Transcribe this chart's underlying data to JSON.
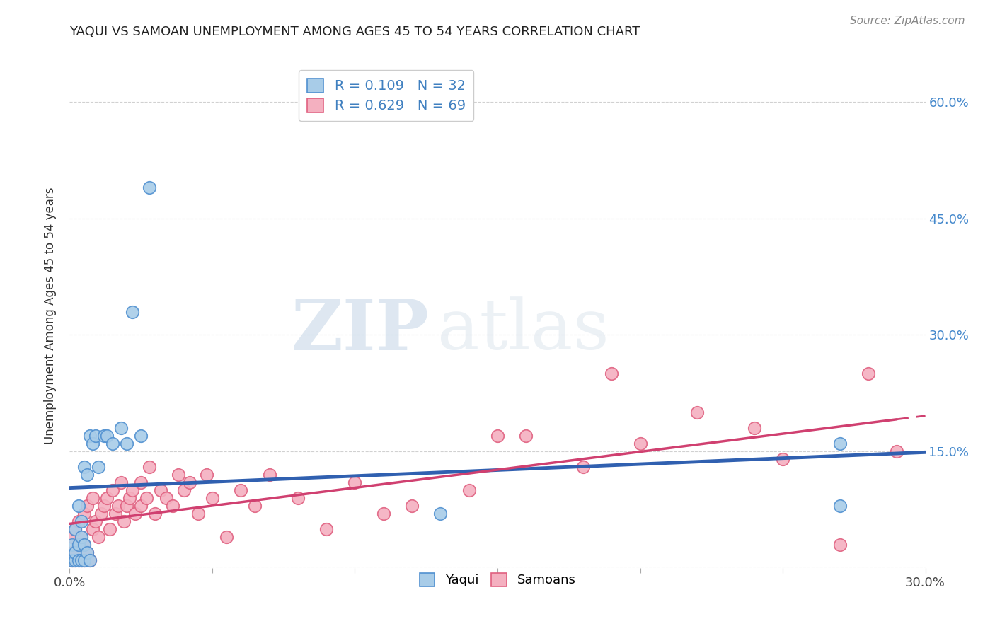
{
  "title": "YAQUI VS SAMOAN UNEMPLOYMENT AMONG AGES 45 TO 54 YEARS CORRELATION CHART",
  "source": "Source: ZipAtlas.com",
  "ylabel": "Unemployment Among Ages 45 to 54 years",
  "xlim": [
    0.0,
    0.3
  ],
  "ylim": [
    0.0,
    0.65
  ],
  "xticks": [
    0.0,
    0.05,
    0.1,
    0.15,
    0.2,
    0.25,
    0.3
  ],
  "xticklabels": [
    "0.0%",
    "",
    "",
    "",
    "",
    "",
    "30.0%"
  ],
  "yticks": [
    0.0,
    0.15,
    0.3,
    0.45,
    0.6
  ],
  "yticklabels_right": [
    "",
    "15.0%",
    "30.0%",
    "45.0%",
    "60.0%"
  ],
  "legend_r_yaqui": "R = 0.109",
  "legend_n_yaqui": "N = 32",
  "legend_r_samoan": "R = 0.629",
  "legend_n_samoan": "N = 69",
  "legend_label_yaqui": "Yaqui",
  "legend_label_samoan": "Samoans",
  "yaqui_color": "#a8cce8",
  "samoan_color": "#f4b0c0",
  "yaqui_edge_color": "#5090d0",
  "samoan_edge_color": "#e06080",
  "yaqui_line_color": "#3060b0",
  "samoan_line_color": "#d04070",
  "legend_text_color": "#4080c0",
  "legend_n_color": "#e05070",
  "watermark_zip": "ZIP",
  "watermark_atlas": "atlas",
  "grid_color": "#cccccc",
  "bg_color": "#ffffff",
  "yaqui_scatter_x": [
    0.001,
    0.001,
    0.002,
    0.002,
    0.002,
    0.003,
    0.003,
    0.003,
    0.004,
    0.004,
    0.004,
    0.005,
    0.005,
    0.005,
    0.006,
    0.006,
    0.007,
    0.007,
    0.008,
    0.009,
    0.01,
    0.012,
    0.013,
    0.015,
    0.018,
    0.02,
    0.022,
    0.025,
    0.028,
    0.13,
    0.27,
    0.27
  ],
  "yaqui_scatter_y": [
    0.01,
    0.03,
    0.01,
    0.02,
    0.05,
    0.01,
    0.03,
    0.08,
    0.01,
    0.04,
    0.06,
    0.01,
    0.03,
    0.13,
    0.02,
    0.12,
    0.01,
    0.17,
    0.16,
    0.17,
    0.13,
    0.17,
    0.17,
    0.16,
    0.18,
    0.16,
    0.33,
    0.17,
    0.49,
    0.07,
    0.08,
    0.16
  ],
  "samoan_scatter_x": [
    0.001,
    0.001,
    0.001,
    0.002,
    0.002,
    0.002,
    0.003,
    0.003,
    0.003,
    0.004,
    0.004,
    0.005,
    0.005,
    0.005,
    0.006,
    0.006,
    0.007,
    0.008,
    0.008,
    0.009,
    0.01,
    0.011,
    0.012,
    0.013,
    0.014,
    0.015,
    0.016,
    0.017,
    0.018,
    0.019,
    0.02,
    0.021,
    0.022,
    0.023,
    0.025,
    0.025,
    0.027,
    0.028,
    0.03,
    0.032,
    0.034,
    0.036,
    0.038,
    0.04,
    0.042,
    0.045,
    0.048,
    0.05,
    0.055,
    0.06,
    0.065,
    0.07,
    0.08,
    0.09,
    0.1,
    0.11,
    0.12,
    0.14,
    0.15,
    0.16,
    0.18,
    0.19,
    0.2,
    0.22,
    0.24,
    0.25,
    0.27,
    0.28,
    0.29
  ],
  "samoan_scatter_y": [
    0.01,
    0.02,
    0.04,
    0.01,
    0.02,
    0.05,
    0.01,
    0.03,
    0.06,
    0.01,
    0.04,
    0.01,
    0.03,
    0.07,
    0.02,
    0.08,
    0.01,
    0.05,
    0.09,
    0.06,
    0.04,
    0.07,
    0.08,
    0.09,
    0.05,
    0.1,
    0.07,
    0.08,
    0.11,
    0.06,
    0.08,
    0.09,
    0.1,
    0.07,
    0.11,
    0.08,
    0.09,
    0.13,
    0.07,
    0.1,
    0.09,
    0.08,
    0.12,
    0.1,
    0.11,
    0.07,
    0.12,
    0.09,
    0.04,
    0.1,
    0.08,
    0.12,
    0.09,
    0.05,
    0.11,
    0.07,
    0.08,
    0.1,
    0.17,
    0.17,
    0.13,
    0.25,
    0.16,
    0.2,
    0.18,
    0.14,
    0.03,
    0.25,
    0.15
  ]
}
